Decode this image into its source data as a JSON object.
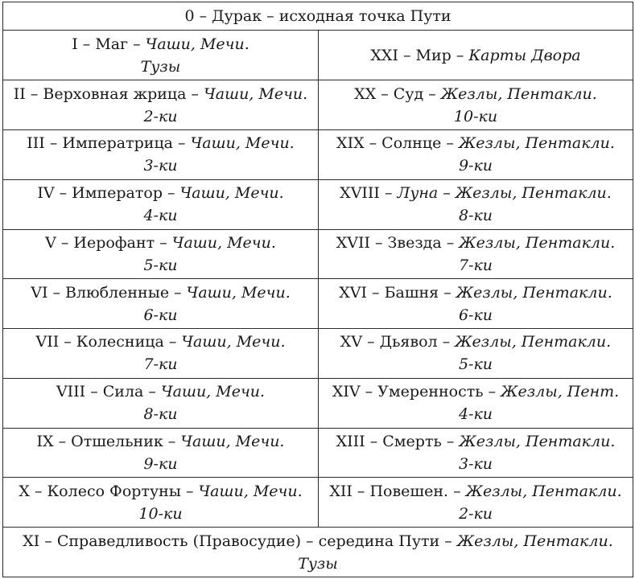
{
  "header": {
    "text": "0 – Дурак – исходная точка Пути"
  },
  "rows": [
    {
      "left": {
        "main": "I – Маг – ",
        "suits": "Чаши, Мечи.",
        "second": "Тузы"
      },
      "right": {
        "main": "XXI – Мир – ",
        "suits": "Карты Двора",
        "second": ""
      }
    },
    {
      "left": {
        "main": "II – Верховная жрица – ",
        "suits": "Чаши, Мечи.",
        "second": "2-ки"
      },
      "right": {
        "main": "XX – Суд – ",
        "suits": "Жезлы, Пентакли.",
        "second": "10-ки"
      }
    },
    {
      "left": {
        "main": "III – Императрица – ",
        "suits": "Чаши, Мечи.",
        "second": "3-ки"
      },
      "right": {
        "main": "XIX – Солнце – ",
        "suits": "Жезлы, Пентакли.",
        "second": "9-ки"
      }
    },
    {
      "left": {
        "main": "IV – Император – ",
        "suits": "Чаши, Мечи.",
        "second": "4-ки"
      },
      "right": {
        "main": "XVIII – ",
        "suits": "Луна – Жезлы, Пентакли.",
        "second": "8-ки"
      }
    },
    {
      "left": {
        "main": "V – Иерофант – ",
        "suits": "Чаши, Мечи.",
        "second": "5-ки"
      },
      "right": {
        "main": "XVII – Звезда – ",
        "suits": "Жезлы, Пентакли.",
        "second": "7-ки"
      }
    },
    {
      "left": {
        "main": "VI – Влюбленные – ",
        "suits": "Чаши, Мечи.",
        "second": "6-ки"
      },
      "right": {
        "main": "XVI – Башня – ",
        "suits": "Жезлы, Пентакли.",
        "second": "6-ки"
      }
    },
    {
      "left": {
        "main": "VII – Колесница – ",
        "suits": "Чаши, Мечи.",
        "second": "7-ки"
      },
      "right": {
        "main": "XV – Дьявол – ",
        "suits": "Жезлы, Пентакли.",
        "second": "5-ки"
      }
    },
    {
      "left": {
        "main": "VIII – Сила – ",
        "suits": "Чаши, Мечи.",
        "second": "8-ки"
      },
      "right": {
        "main": "XIV – Умеренность – ",
        "suits": "Жезлы, Пент.",
        "second": "4-ки"
      }
    },
    {
      "left": {
        "main": "IX – Отшельник – ",
        "suits": "Чаши, Мечи.",
        "second": "9-ки"
      },
      "right": {
        "main": "XIII – Смерть – ",
        "suits": "Жезлы, Пентакли.",
        "second": "3-ки"
      }
    },
    {
      "left": {
        "main": "X – Колесо Фортуны – ",
        "suits": "Чаши, Мечи.",
        "second": "10-ки"
      },
      "right": {
        "main": "XII – Повешен. – ",
        "suits": "Жезлы, Пентакли.",
        "second": "2-ки"
      }
    }
  ],
  "footer": {
    "main": "XI – Справедливость (Правосудие) – середина Пути – ",
    "suits": "Жезлы, Пентакли.",
    "second": "Тузы"
  }
}
